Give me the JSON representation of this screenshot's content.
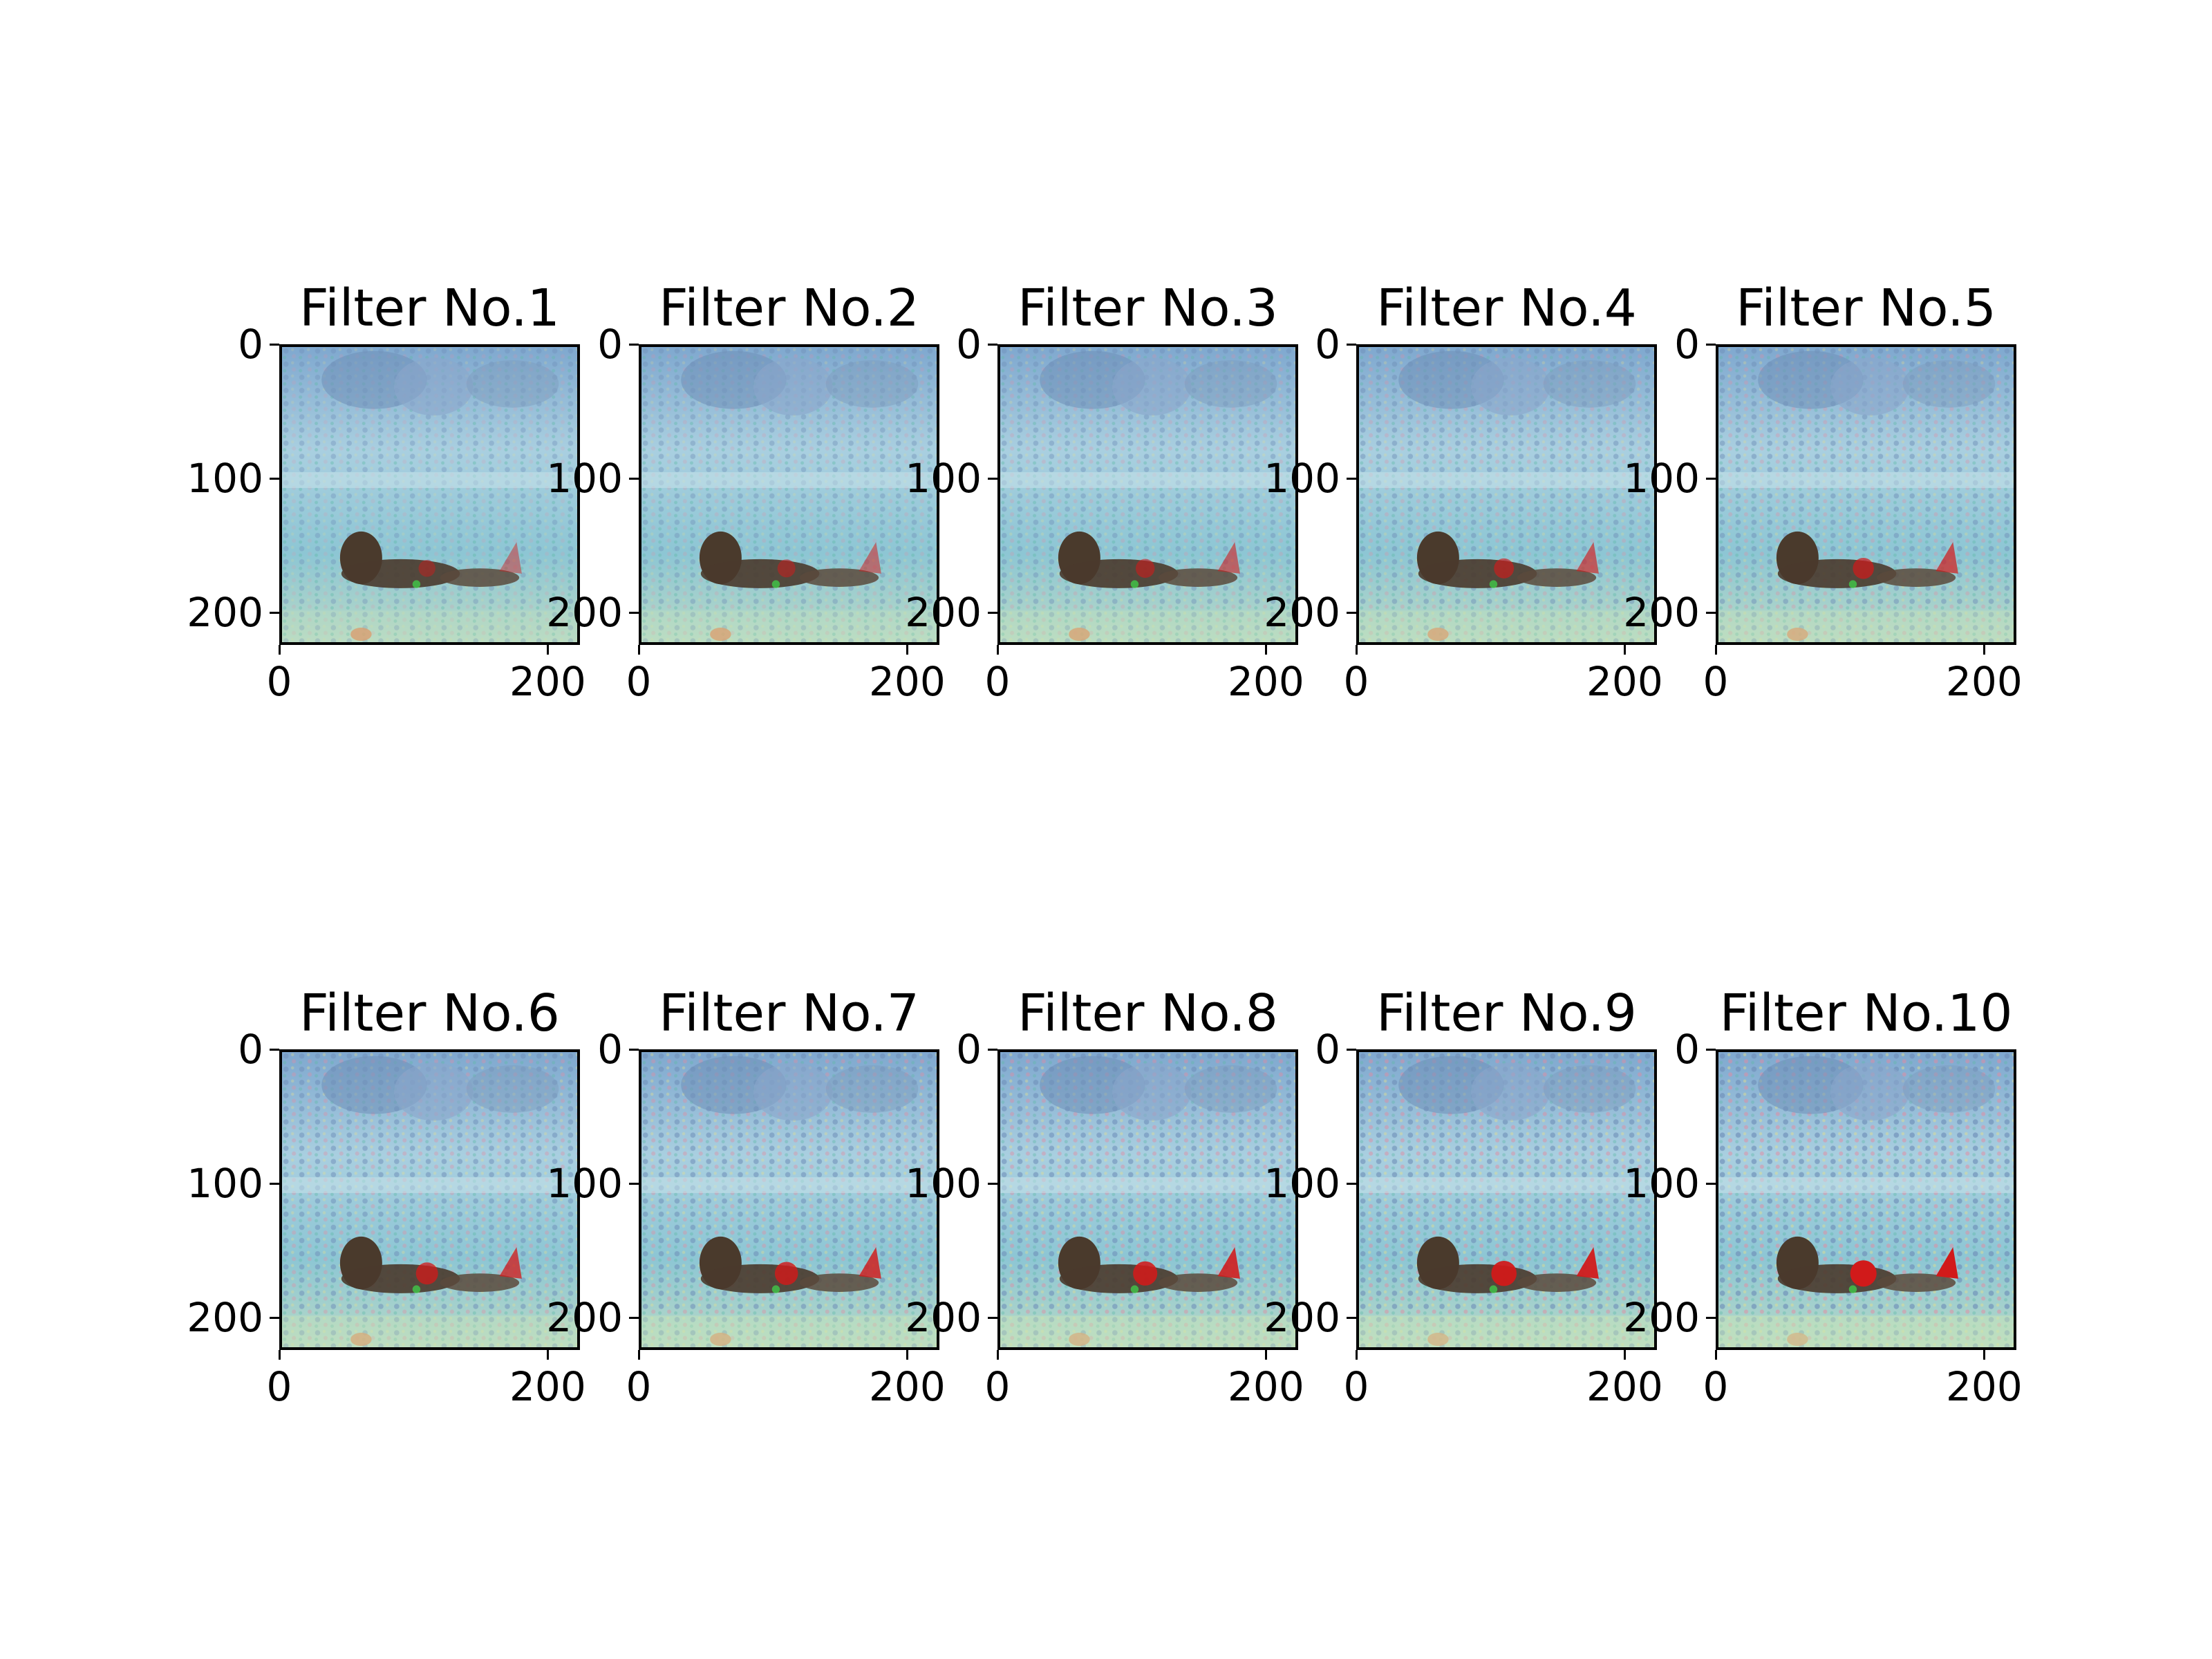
{
  "figure": {
    "panels": [
      {
        "title": "Filter No.1"
      },
      {
        "title": "Filter No.2"
      },
      {
        "title": "Filter No.3"
      },
      {
        "title": "Filter No.4"
      },
      {
        "title": "Filter No.5"
      },
      {
        "title": "Filter No.6"
      },
      {
        "title": "Filter No.7"
      },
      {
        "title": "Filter No.8"
      },
      {
        "title": "Filter No.9"
      },
      {
        "title": "Filter No.10"
      }
    ],
    "y_ticks": [
      "0",
      "100",
      "200"
    ],
    "x_ticks": [
      "0",
      "200"
    ],
    "colors": {
      "sky": "#8fc3d6",
      "ground": "#9fd0dc",
      "animal": "#4a3a2c",
      "accent_red": "#d11a1a",
      "foliage": "#6f8fb8"
    }
  }
}
